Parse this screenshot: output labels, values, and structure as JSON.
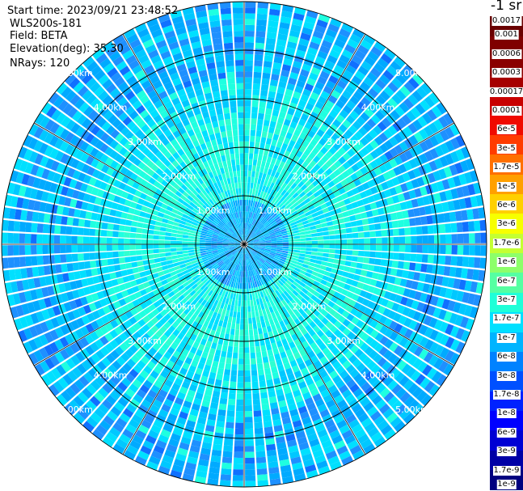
{
  "header": {
    "start_time": "Start time: 2023/09/21 23:48:52",
    "instrument": "WLS200s-181",
    "field": "Field: BETA",
    "elevation": "Elevation(deg): 35.30",
    "nrays": "NRays: 120"
  },
  "unit_label": "-1 sr",
  "chart_data": {
    "type": "heatmap",
    "projection": "polar-ppi",
    "field": "BETA",
    "elevation_deg": 35.3,
    "n_rays": 120,
    "max_range_km": 5.0,
    "range_rings_km": [
      1.0,
      2.0,
      3.0,
      4.0,
      5.0
    ],
    "ring_labels": [
      "1.00km",
      "2.00km",
      "3.00km",
      "4.00km",
      "5.00km"
    ],
    "radial_lines_deg": [
      0,
      30,
      60,
      90,
      120,
      150,
      180,
      210,
      240,
      270,
      300,
      330
    ],
    "typical_values_by_range": [
      {
        "range_km": [
          0.0,
          1.0
        ],
        "beta": "1e-7 to 6e-8"
      },
      {
        "range_km": [
          1.0,
          2.0
        ],
        "beta": "1.7e-7 to 3e-7"
      },
      {
        "range_km": [
          2.0,
          3.0
        ],
        "beta": "1.7e-7"
      },
      {
        "range_km": [
          3.0,
          5.0
        ],
        "beta": "1e-7 to 3e-8"
      }
    ],
    "colorbar": {
      "levels": [
        "1e-9",
        "1.7e-9",
        "3e-9",
        "6e-9",
        "1e-8",
        "1.7e-8",
        "3e-8",
        "6e-8",
        "1e-7",
        "1.7e-7",
        "3e-7",
        "6e-7",
        "1e-6",
        "1.7e-6",
        "3e-6",
        "6e-6",
        "1e-5",
        "1.7e-5",
        "3e-5",
        "6e-5",
        "0.0001",
        "0.00017",
        "0.0003",
        "0.0006",
        "0.001",
        "0.0017"
      ],
      "colors": [
        "#00007f",
        "#0000a6",
        "#0000d4",
        "#0000ff",
        "#0022ff",
        "#0050ff",
        "#0082ff",
        "#00b4ff",
        "#00e0ff",
        "#1fffd8",
        "#55ffa2",
        "#8dff6a",
        "#c4ff33",
        "#f7ff00",
        "#ffd000",
        "#ffa000",
        "#ff7000",
        "#ff3c00",
        "#f00a00",
        "#c80000",
        "#a60000",
        "#8a0000",
        "#7f0000",
        "#6a0000"
      ]
    }
  }
}
